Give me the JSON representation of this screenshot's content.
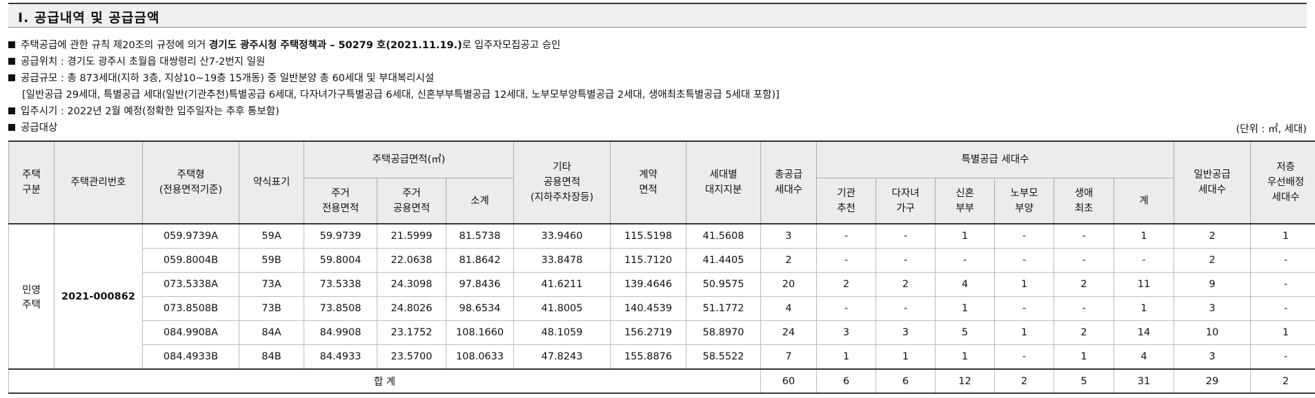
{
  "section_title": "Ⅰ. 공급내역 및 공급금액",
  "notes": {
    "l1_pre": "주택공급에 관한 규칙 제20조의 규정에 의거 ",
    "l1_bold": "경기도 광주시청 주택정책과 – 50279 호(2021.11.19.)",
    "l1_post": "로 입주자모집공고 승인",
    "l2": "공급위치 : 경기도 광주시 초월읍 대쌍령리 산7-2번지 일원",
    "l3": "공급규모 : 총 873세대(지하 3층, 지상10~19층 15개동) 중 일반분양 총 60세대 및 부대복리시설",
    "l4": "[일반공급 29세대, 특별공급 세대(일반(기관추천)특별공급 6세대, 다자녀가구특별공급 6세대, 신혼부부특별공급 12세대, 노부모부양특별공급 2세대, 생애최초특별공급 5세대 포함)]",
    "l5": "입주시기 : 2022년 2월 예정(정확한 입주일자는 추후 통보함)",
    "l6": "공급대상"
  },
  "unit": "(단위 : ㎡, 세대)",
  "headers": {
    "house_type": [
      "주택",
      "구분"
    ],
    "mgmt_no": "주택관리번호",
    "model": [
      "주택형",
      "(전용면적기준)"
    ],
    "abbr": "약식표기",
    "supply_area": "주택공급면적(㎡)",
    "excl": [
      "주거",
      "전용면적"
    ],
    "common": [
      "주거",
      "공용면적"
    ],
    "subtotal": "소계",
    "other": [
      "기타",
      "공용면적",
      "(지하주차장등)"
    ],
    "contract": [
      "계약",
      "면적"
    ],
    "land": [
      "세대별",
      "대지지분"
    ],
    "total_units": [
      "총공급",
      "세대수"
    ],
    "special": "특별공급 세대수",
    "agency": [
      "기관",
      "추천"
    ],
    "multichild": [
      "다자녀",
      "가구"
    ],
    "newlywed": [
      "신혼",
      "부부"
    ],
    "elderly": [
      "노부모",
      "부양"
    ],
    "firsttime": [
      "생애",
      "최초"
    ],
    "sp_total": "계",
    "general": [
      "일반공급",
      "세대수"
    ],
    "lowfloor": [
      "저층",
      "우선배정",
      "세대수"
    ]
  },
  "group": {
    "house_type": [
      "민영",
      "주택"
    ],
    "mgmt_no": "2021-000862"
  },
  "rows": [
    [
      "059.9739A",
      "59A",
      "59.9739",
      "21.5999",
      "81.5738",
      "33.9460",
      "115.5198",
      "41.5608",
      "3",
      "-",
      "-",
      "1",
      "-",
      "-",
      "1",
      "2",
      "1"
    ],
    [
      "059.8004B",
      "59B",
      "59.8004",
      "22.0638",
      "81.8642",
      "33.8478",
      "115.7120",
      "41.4405",
      "2",
      "-",
      "-",
      "-",
      "-",
      "-",
      "-",
      "2",
      "-"
    ],
    [
      "073.5338A",
      "73A",
      "73.5338",
      "24.3098",
      "97.8436",
      "41.6211",
      "139.4646",
      "50.9575",
      "20",
      "2",
      "2",
      "4",
      "1",
      "2",
      "11",
      "9",
      "-"
    ],
    [
      "073.8508B",
      "73B",
      "73.8508",
      "24.8026",
      "98.6534",
      "41.8005",
      "140.4539",
      "51.1772",
      "4",
      "-",
      "-",
      "1",
      "-",
      "-",
      "1",
      "3",
      "-"
    ],
    [
      "084.9908A",
      "84A",
      "84.9908",
      "23.1752",
      "108.1660",
      "48.1059",
      "156.2719",
      "58.8970",
      "24",
      "3",
      "3",
      "5",
      "1",
      "2",
      "14",
      "10",
      "1"
    ],
    [
      "084.4933B",
      "84B",
      "84.4933",
      "23.5700",
      "108.0633",
      "47.8243",
      "155.8876",
      "58.5522",
      "7",
      "1",
      "1",
      "1",
      "-",
      "1",
      "4",
      "3",
      "-"
    ]
  ],
  "total": {
    "label": "합 계",
    "values": [
      "60",
      "6",
      "6",
      "12",
      "2",
      "5",
      "31",
      "29",
      "2"
    ]
  }
}
